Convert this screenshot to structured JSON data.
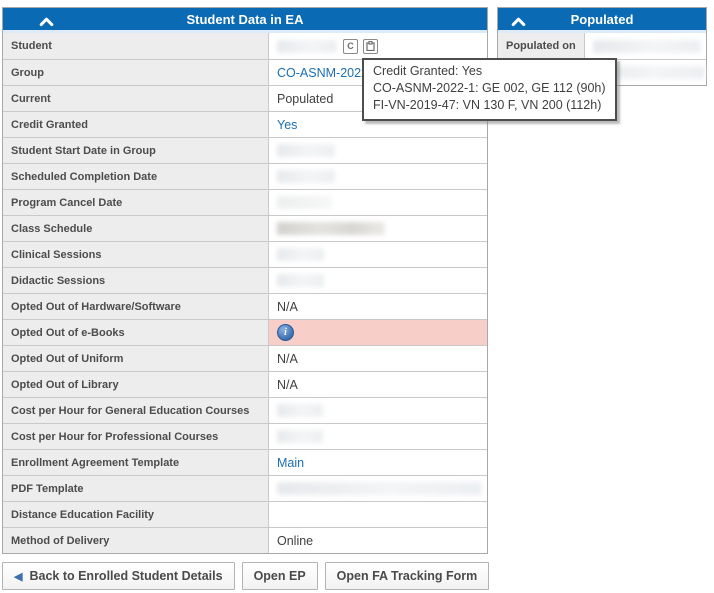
{
  "colors": {
    "header_blue": "#0a6bb4",
    "link_blue": "#1a6fb5",
    "highlight_pink": "#f8cec9"
  },
  "left_panel": {
    "title": "Student Data in EA",
    "rows": [
      {
        "label": "Student",
        "type": "redacted-icons",
        "redacted_width": 60,
        "shade": "light",
        "icons": [
          "C",
          "clipboard"
        ]
      },
      {
        "label": "Group",
        "type": "link",
        "value": "CO-ASNM-2022-1"
      },
      {
        "label": "Current",
        "type": "text",
        "value": "Populated"
      },
      {
        "label": "Credit Granted",
        "type": "link",
        "value": "Yes"
      },
      {
        "label": "Student Start Date in Group",
        "type": "redacted",
        "redacted_width": 58,
        "shade": "light"
      },
      {
        "label": "Scheduled Completion Date",
        "type": "redacted",
        "redacted_width": 58,
        "shade": "light"
      },
      {
        "label": "Program Cancel Date",
        "type": "redacted",
        "redacted_width": 55,
        "shade": "lighter"
      },
      {
        "label": "Class Schedule",
        "type": "redacted",
        "redacted_width": 108,
        "shade": "mid"
      },
      {
        "label": "Clinical Sessions",
        "type": "redacted",
        "redacted_width": 47,
        "shade": "light"
      },
      {
        "label": "Didactic Sessions",
        "type": "redacted",
        "redacted_width": 47,
        "shade": "light"
      },
      {
        "label": "Opted Out of Hardware/Software",
        "type": "text",
        "value": "N/A"
      },
      {
        "label": "Opted Out of e-Books",
        "type": "info",
        "highlight": true
      },
      {
        "label": "Opted Out of Uniform",
        "type": "text",
        "value": "N/A"
      },
      {
        "label": "Opted Out of Library",
        "type": "text",
        "value": "N/A"
      },
      {
        "label": "Cost per Hour for General Education Courses",
        "type": "redacted",
        "redacted_width": 46,
        "shade": "light"
      },
      {
        "label": "Cost per Hour for Professional Courses",
        "type": "redacted",
        "redacted_width": 46,
        "shade": "light"
      },
      {
        "label": "Enrollment Agreement Template",
        "type": "link",
        "value": "Main"
      },
      {
        "label": "PDF Template",
        "type": "redacted",
        "redacted_width": 205,
        "shade": "light"
      },
      {
        "label": "Distance Education Facility",
        "type": "empty"
      },
      {
        "label": "Method of Delivery",
        "type": "text",
        "value": "Online"
      }
    ]
  },
  "right_panel": {
    "title": "Populated",
    "rows": [
      {
        "label": "Populated on",
        "type": "redacted",
        "redacted_width": 108,
        "shade": "light"
      },
      {
        "label": "",
        "type": "redacted",
        "redacted_width": 112,
        "shade": "light"
      }
    ]
  },
  "tooltip": {
    "lines": [
      "Credit Granted: Yes",
      "CO-ASNM-2022-1: GE 002, GE 112 (90h)",
      "FI-VN-2019-47: VN 130 F, VN 200 (112h)"
    ]
  },
  "footer_buttons": {
    "back": "Back to Enrolled Student Details",
    "open_ep": "Open EP",
    "open_fa": "Open FA Tracking Form"
  }
}
